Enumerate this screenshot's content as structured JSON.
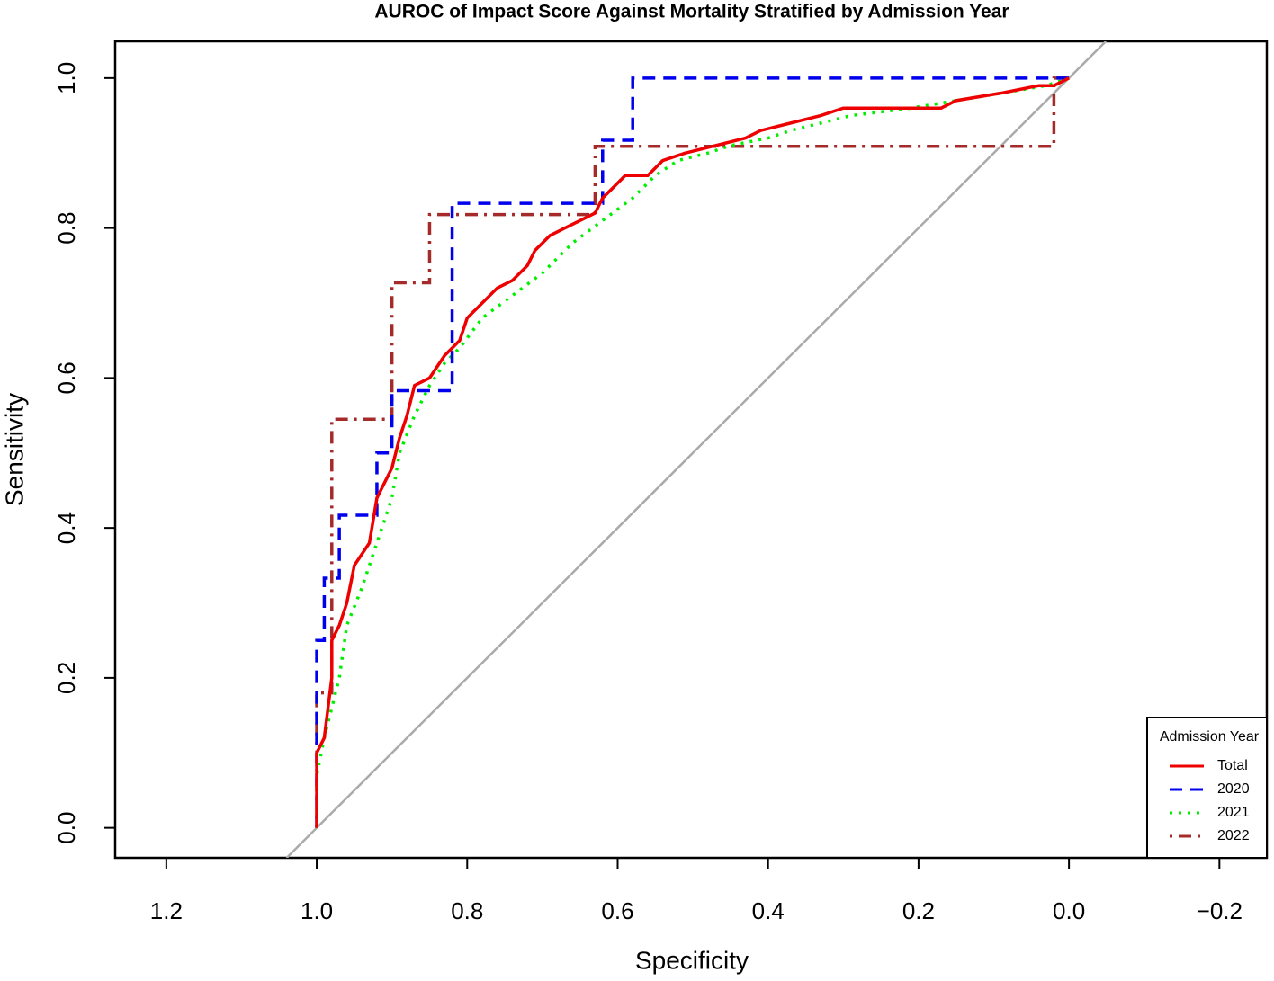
{
  "chart_data": {
    "type": "line",
    "title": "AUROC of Impact Score Against Mortality Stratified by Admission Year",
    "xlabel": "Specificity",
    "ylabel": "Sensitivity",
    "xlim": [
      1.268,
      -0.263
    ],
    "ylim": [
      -0.04,
      1.049
    ],
    "xticks": [
      1.2,
      {
        "value": 1,
        "label": "1.0"
      },
      0.8,
      0.6,
      0.4,
      0.2,
      {
        "value": 0,
        "label": "0.0"
      },
      {
        "value": -0.2,
        "label": "−0.2"
      }
    ],
    "yticks": [
      {
        "value": 0,
        "label": "0.0"
      },
      0.2,
      0.4,
      0.6,
      0.8,
      {
        "value": 1,
        "label": "1.0"
      }
    ],
    "diagonal": true,
    "diagonal_color": "#aaaaaa",
    "legend_title": "Admission Year",
    "legend_position": "bottom-right",
    "series": [
      {
        "name": "Total",
        "color": "#ee0000",
        "dash": "solid",
        "x": [
          1,
          1,
          0.99,
          0.98,
          0.98,
          0.97,
          0.96,
          0.95,
          0.93,
          0.92,
          0.9,
          0.89,
          0.88,
          0.87,
          0.85,
          0.83,
          0.81,
          0.8,
          0.78,
          0.76,
          0.74,
          0.72,
          0.71,
          0.69,
          0.67,
          0.65,
          0.63,
          0.62,
          0.6,
          0.59,
          0.56,
          0.54,
          0.51,
          0.47,
          0.43,
          0.41,
          0.37,
          0.33,
          0.3,
          0.17,
          0.15,
          0.09,
          0.04,
          0.02,
          0
        ],
        "values": [
          0,
          0.1,
          0.12,
          0.2,
          0.25,
          0.27,
          0.3,
          0.35,
          0.38,
          0.44,
          0.48,
          0.52,
          0.55,
          0.59,
          0.6,
          0.63,
          0.65,
          0.68,
          0.7,
          0.72,
          0.73,
          0.75,
          0.77,
          0.79,
          0.8,
          0.81,
          0.82,
          0.84,
          0.86,
          0.87,
          0.87,
          0.89,
          0.9,
          0.91,
          0.92,
          0.93,
          0.94,
          0.95,
          0.96,
          0.96,
          0.97,
          0.98,
          0.99,
          0.99,
          1
        ]
      },
      {
        "name": "2020",
        "color": "#0000ee",
        "dash": "dashed",
        "x": [
          1,
          1,
          0.99,
          0.99,
          0.97,
          0.97,
          0.92,
          0.92,
          0.9,
          0.9,
          0.82,
          0.82,
          0.62,
          0.62,
          0.58,
          0.58,
          0
        ],
        "values": [
          0,
          0.25,
          0.25,
          0.333,
          0.333,
          0.417,
          0.417,
          0.5,
          0.5,
          0.583,
          0.583,
          0.833,
          0.833,
          0.917,
          0.917,
          1,
          1
        ]
      },
      {
        "name": "2021",
        "color": "#00ee00",
        "dash": "dotted",
        "x": [
          1,
          1,
          0.99,
          0.97,
          0.96,
          0.94,
          0.92,
          0.9,
          0.89,
          0.87,
          0.85,
          0.83,
          0.81,
          0.78,
          0.74,
          0.7,
          0.66,
          0.62,
          0.58,
          0.55,
          0.52,
          0.48,
          0.45,
          0.4,
          0.37,
          0.33,
          0.29,
          0.21,
          0.15,
          0.09,
          0.03,
          0
        ],
        "values": [
          0,
          0.07,
          0.12,
          0.2,
          0.27,
          0.32,
          0.38,
          0.44,
          0.5,
          0.55,
          0.59,
          0.62,
          0.64,
          0.68,
          0.71,
          0.74,
          0.78,
          0.81,
          0.84,
          0.87,
          0.89,
          0.9,
          0.91,
          0.92,
          0.93,
          0.94,
          0.95,
          0.96,
          0.97,
          0.98,
          0.99,
          1
        ]
      },
      {
        "name": "2022",
        "color": "#a52a2a",
        "dash": "dotdash",
        "x": [
          1,
          1,
          0.98,
          0.98,
          0.9,
          0.9,
          0.85,
          0.85,
          0.63,
          0.63,
          0.02,
          0.02,
          0
        ],
        "values": [
          0,
          0.18,
          0.18,
          0.545,
          0.545,
          0.727,
          0.727,
          0.818,
          0.818,
          0.909,
          0.909,
          1,
          1
        ]
      }
    ]
  }
}
